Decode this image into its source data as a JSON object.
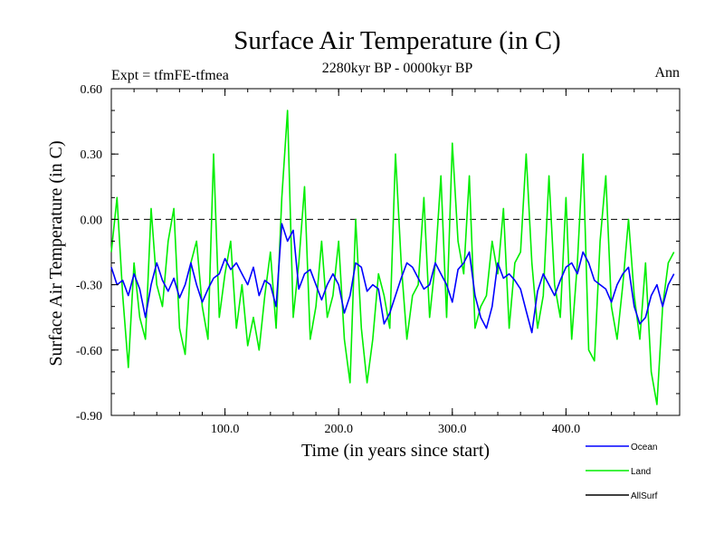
{
  "chart_data": {
    "type": "line",
    "title": "Surface Air Temperature (in C)",
    "subtitle": "2280kyr BP - 0000kyr BP",
    "left_label": "Expt = tfmFE-tfmea",
    "right_label": "Ann",
    "xlabel": "Time (in years since start)",
    "ylabel": "Surface Air Temperature (in C)",
    "xlim": [
      0,
      500
    ],
    "ylim": [
      -0.9,
      0.6
    ],
    "x_ticks": [
      100,
      200,
      300,
      400
    ],
    "x_tick_labels": [
      "100.0",
      "200.0",
      "300.0",
      "400.0"
    ],
    "y_ticks": [
      -0.9,
      -0.6,
      -0.3,
      0.0,
      0.3,
      0.6
    ],
    "y_tick_labels": [
      "-0.90",
      "-0.60",
      "-0.30",
      "0.00",
      "0.30",
      "0.60"
    ],
    "reference_line": 0.0,
    "x_step": 5,
    "series": [
      {
        "name": "Ocean",
        "color": "#0000ff",
        "values": [
          -0.22,
          -0.3,
          -0.28,
          -0.35,
          -0.25,
          -0.32,
          -0.45,
          -0.3,
          -0.2,
          -0.28,
          -0.33,
          -0.27,
          -0.36,
          -0.3,
          -0.2,
          -0.3,
          -0.38,
          -0.32,
          -0.27,
          -0.25,
          -0.18,
          -0.23,
          -0.2,
          -0.25,
          -0.3,
          -0.22,
          -0.35,
          -0.28,
          -0.3,
          -0.4,
          -0.02,
          -0.1,
          -0.05,
          -0.32,
          -0.25,
          -0.23,
          -0.3,
          -0.37,
          -0.3,
          -0.25,
          -0.3,
          -0.43,
          -0.35,
          -0.2,
          -0.22,
          -0.33,
          -0.3,
          -0.32,
          -0.48,
          -0.43,
          -0.35,
          -0.27,
          -0.2,
          -0.22,
          -0.27,
          -0.32,
          -0.3,
          -0.2,
          -0.25,
          -0.3,
          -0.38,
          -0.23,
          -0.2,
          -0.15,
          -0.35,
          -0.45,
          -0.5,
          -0.4,
          -0.2,
          -0.27,
          -0.25,
          -0.28,
          -0.32,
          -0.42,
          -0.52,
          -0.33,
          -0.25,
          -0.3,
          -0.35,
          -0.28,
          -0.22,
          -0.2,
          -0.25,
          -0.15,
          -0.2,
          -0.28,
          -0.3,
          -0.32,
          -0.38,
          -0.3,
          -0.25,
          -0.22,
          -0.4,
          -0.48,
          -0.45,
          -0.35,
          -0.3,
          -0.4,
          -0.3,
          -0.25
        ]
      },
      {
        "name": "Land",
        "color": "#00ee00",
        "values": [
          -0.15,
          0.1,
          -0.35,
          -0.68,
          -0.2,
          -0.45,
          -0.55,
          0.05,
          -0.3,
          -0.4,
          -0.1,
          0.05,
          -0.5,
          -0.62,
          -0.2,
          -0.1,
          -0.4,
          -0.55,
          0.3,
          -0.45,
          -0.25,
          -0.1,
          -0.5,
          -0.3,
          -0.58,
          -0.45,
          -0.6,
          -0.35,
          -0.15,
          -0.5,
          0.1,
          0.5,
          -0.45,
          -0.2,
          0.15,
          -0.55,
          -0.4,
          -0.1,
          -0.45,
          -0.35,
          -0.1,
          -0.55,
          -0.75,
          0.0,
          -0.5,
          -0.75,
          -0.55,
          -0.25,
          -0.35,
          -0.5,
          0.3,
          -0.2,
          -0.55,
          -0.35,
          -0.3,
          0.1,
          -0.45,
          -0.2,
          0.2,
          -0.45,
          0.35,
          -0.1,
          -0.25,
          0.2,
          -0.5,
          -0.4,
          -0.35,
          -0.1,
          -0.25,
          0.05,
          -0.5,
          -0.2,
          -0.15,
          0.3,
          -0.2,
          -0.5,
          -0.35,
          0.2,
          -0.3,
          -0.45,
          0.1,
          -0.55,
          -0.2,
          0.3,
          -0.6,
          -0.65,
          -0.1,
          0.2,
          -0.4,
          -0.55,
          -0.3,
          0.0,
          -0.35,
          -0.55,
          -0.2,
          -0.7,
          -0.85,
          -0.4,
          -0.2,
          -0.15
        ]
      },
      {
        "name": "AllSurf",
        "color": "#000000",
        "values": []
      }
    ]
  }
}
